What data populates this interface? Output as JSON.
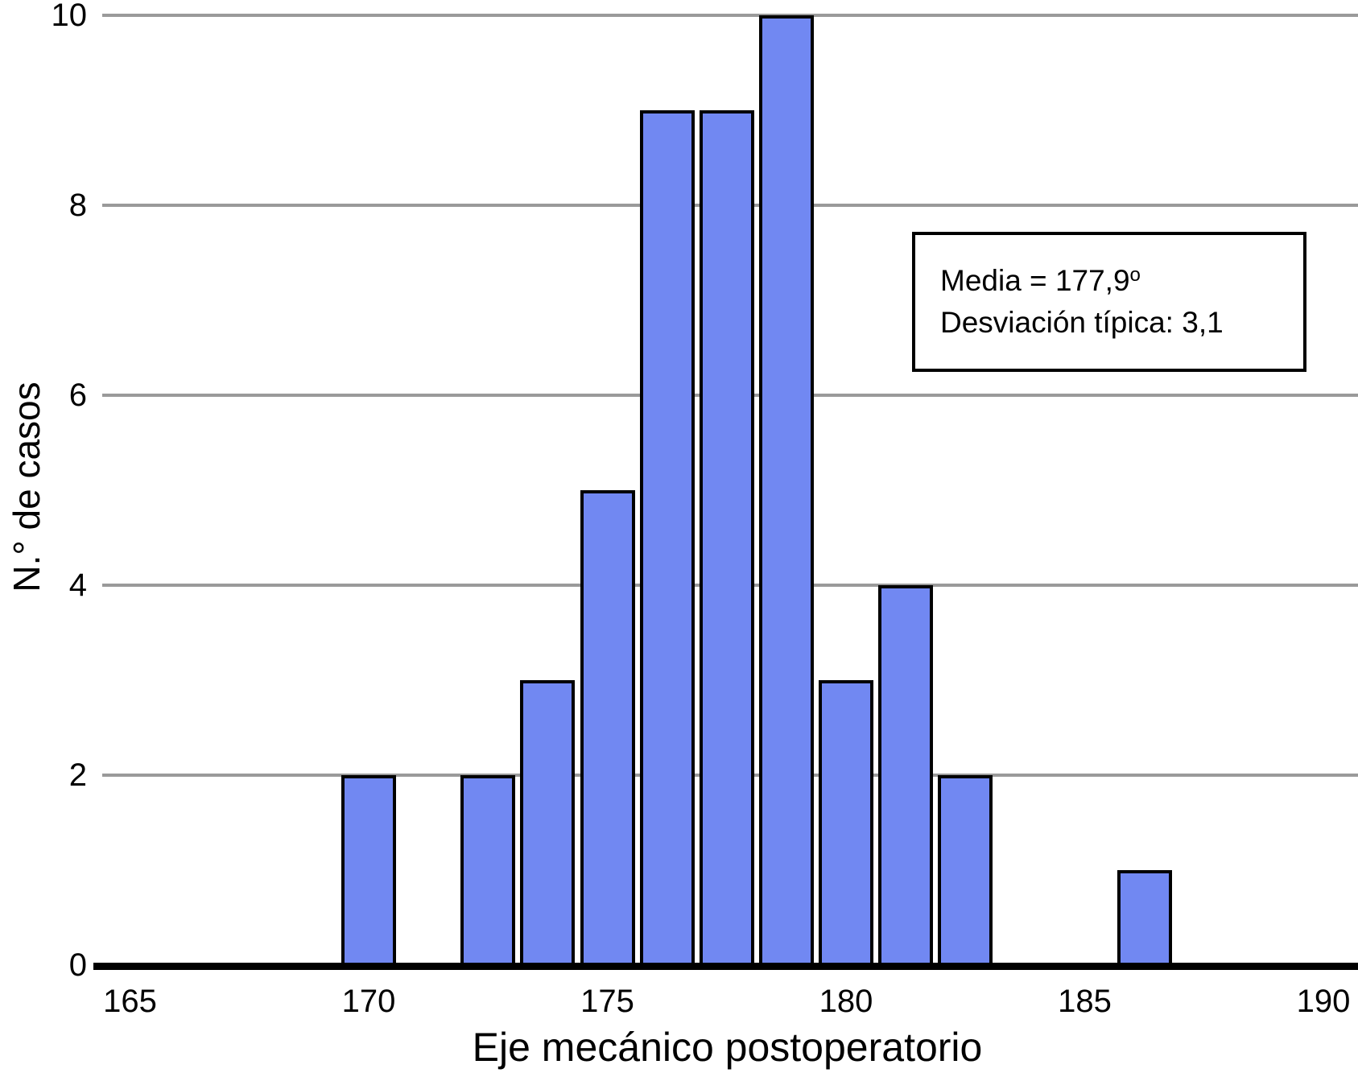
{
  "chart_data": {
    "type": "bar",
    "variant": "histogram",
    "title": "",
    "xlabel": "Eje mecánico postoperatorio",
    "ylabel": "N.° de casos",
    "x_ticks": [
      165,
      170,
      175,
      180,
      185,
      190
    ],
    "y_ticks": [
      0,
      2,
      4,
      6,
      8,
      10
    ],
    "xlim": [
      164.3,
      190.75
    ],
    "ylim": [
      0,
      10
    ],
    "bin_width": 1.25,
    "grid": "horizontal",
    "legend_position": "none",
    "bins": [
      {
        "x": 170.0,
        "count": 2
      },
      {
        "x": 172.5,
        "count": 2
      },
      {
        "x": 173.75,
        "count": 3
      },
      {
        "x": 175.0,
        "count": 5
      },
      {
        "x": 176.25,
        "count": 9
      },
      {
        "x": 177.5,
        "count": 9
      },
      {
        "x": 178.75,
        "count": 10
      },
      {
        "x": 180.0,
        "count": 3
      },
      {
        "x": 181.25,
        "count": 4
      },
      {
        "x": 182.5,
        "count": 2
      },
      {
        "x": 186.25,
        "count": 1
      }
    ],
    "annotation": {
      "mean_text": "Media = 177,9",
      "mean_sup": "o",
      "sd_text": "Desviación típica: 3,1"
    },
    "colors": {
      "bar_fill": "#7188f2",
      "bar_border": "#000000",
      "gridline": "#9a9a9a",
      "axis_line": "#000000",
      "text": "#000000",
      "background": "#ffffff"
    }
  }
}
